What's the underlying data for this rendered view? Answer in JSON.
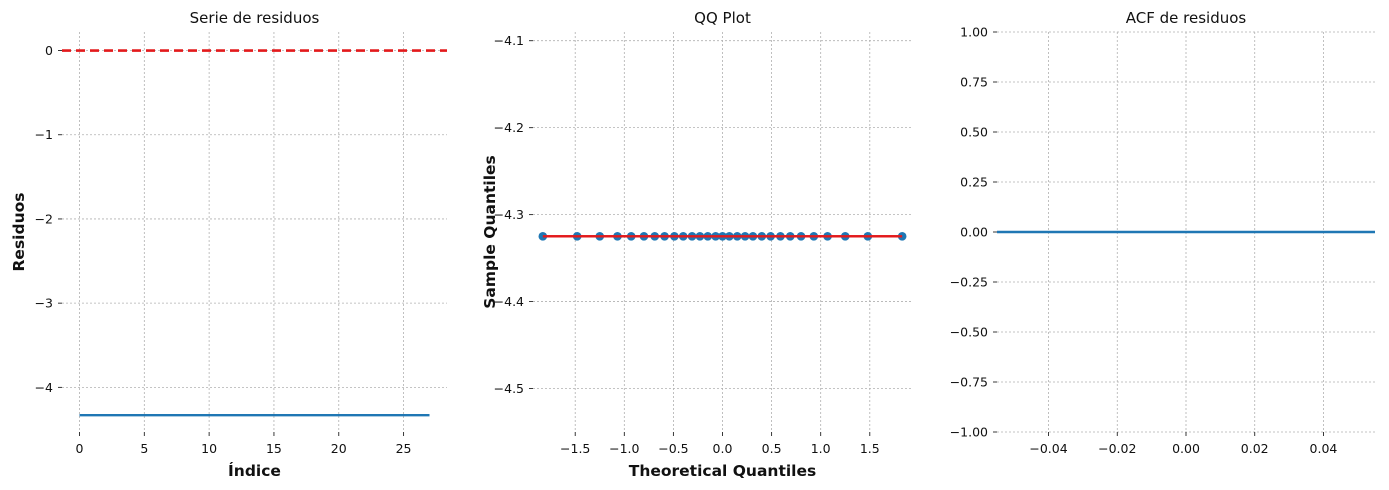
{
  "chart_data": [
    {
      "type": "line",
      "title": "Serie de residuos",
      "xlabel": "Índice",
      "ylabel": "Residuos",
      "xlim": [
        -1.35,
        28.35
      ],
      "ylim": [
        -4.53,
        0.22
      ],
      "xticks": [
        0,
        5,
        10,
        15,
        20,
        25
      ],
      "xtick_labels": [
        "0",
        "5",
        "10",
        "15",
        "20",
        "25"
      ],
      "yticks": [
        0,
        -1,
        -2,
        -3,
        -4
      ],
      "ytick_labels": [
        "0",
        "−1",
        "−2",
        "−3",
        "−4"
      ],
      "grid": true,
      "series": [
        {
          "kind": "line",
          "color": "#1f77b4",
          "x": [
            0,
            27
          ],
          "y": [
            -4.33,
            -4.33
          ]
        }
      ],
      "reference_lines": [
        {
          "kind": "hline",
          "y": 0,
          "color": "#e31a1c",
          "style": "dashed"
        }
      ]
    },
    {
      "type": "scatter",
      "title": "QQ Plot",
      "xlabel": "Theoretical Quantiles",
      "ylabel": "Sample Quantiles",
      "xlim": [
        -1.93,
        1.93
      ],
      "ylim": [
        -4.55,
        -4.09
      ],
      "xticks": [
        -1.5,
        -1.0,
        -0.5,
        0.0,
        0.5,
        1.0,
        1.5
      ],
      "xtick_labels": [
        "−1.5",
        "−1.0",
        "−0.5",
        "0.0",
        "0.5",
        "1.0",
        "1.5"
      ],
      "yticks": [
        -4.1,
        -4.2,
        -4.3,
        -4.4,
        -4.5
      ],
      "ytick_labels": [
        "−4.1",
        "−4.2",
        "−4.3",
        "−4.4",
        "−4.5"
      ],
      "grid": true,
      "series": [
        {
          "kind": "points",
          "color": "#1f77b4",
          "x": [
            -1.83,
            -1.48,
            -1.25,
            -1.07,
            -0.93,
            -0.8,
            -0.69,
            -0.59,
            -0.49,
            -0.4,
            -0.31,
            -0.23,
            -0.15,
            -0.07,
            0.0,
            0.07,
            0.15,
            0.23,
            0.31,
            0.4,
            0.49,
            0.59,
            0.69,
            0.8,
            0.93,
            1.07,
            1.25,
            1.48,
            1.83
          ],
          "y": [
            -4.325,
            -4.325,
            -4.325,
            -4.325,
            -4.325,
            -4.325,
            -4.325,
            -4.325,
            -4.325,
            -4.325,
            -4.325,
            -4.325,
            -4.325,
            -4.325,
            -4.325,
            -4.325,
            -4.325,
            -4.325,
            -4.325,
            -4.325,
            -4.325,
            -4.325,
            -4.325,
            -4.325,
            -4.325,
            -4.325,
            -4.325,
            -4.325,
            -4.325
          ]
        }
      ],
      "reference_lines": [
        {
          "kind": "segment",
          "x": [
            -1.83,
            1.83
          ],
          "y": [
            -4.325,
            -4.325
          ],
          "color": "#e31a1c",
          "style": "solid"
        }
      ]
    },
    {
      "type": "line",
      "title": "ACF de residuos",
      "xlabel": "",
      "ylabel": "",
      "xlim": [
        -0.055,
        0.055
      ],
      "ylim": [
        -1.0,
        1.0
      ],
      "xticks": [
        -0.04,
        -0.02,
        0.0,
        0.02,
        0.04
      ],
      "xtick_labels": [
        "−0.04",
        "−0.02",
        "0.00",
        "0.02",
        "0.04"
      ],
      "yticks": [
        1.0,
        0.75,
        0.5,
        0.25,
        0.0,
        -0.25,
        -0.5,
        -0.75,
        -1.0
      ],
      "ytick_labels": [
        "1.00",
        "0.75",
        "0.50",
        "0.25",
        "0.00",
        "−0.25",
        "−0.50",
        "−0.75",
        "−1.00"
      ],
      "grid": true,
      "series": [
        {
          "kind": "line",
          "color": "#1f77b4",
          "x": [
            -0.055,
            0.055
          ],
          "y": [
            0,
            0
          ]
        }
      ],
      "reference_lines": []
    }
  ]
}
